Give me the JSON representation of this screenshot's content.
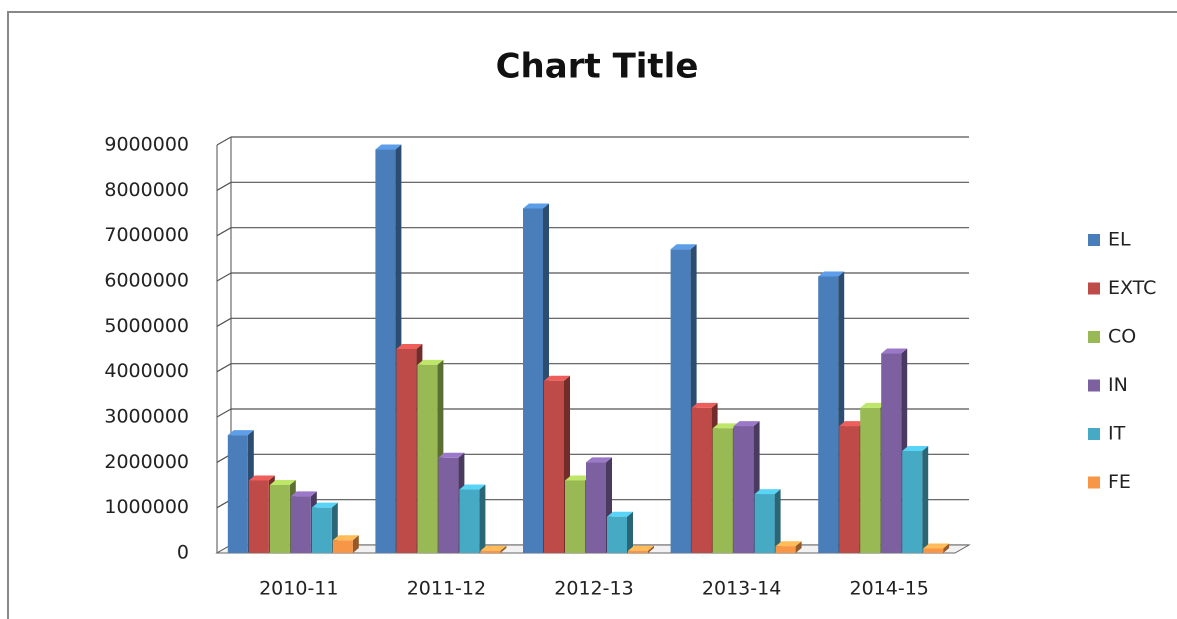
{
  "chart_data": {
    "type": "bar",
    "title": "Chart Title",
    "categories": [
      "2010-11",
      "2011-12",
      "2012-13",
      "2013-14",
      "2014-15"
    ],
    "series": [
      {
        "name": "EL",
        "color": "#4a7ebb",
        "values": [
          2600000,
          8900000,
          7600000,
          6700000,
          6100000
        ]
      },
      {
        "name": "EXTC",
        "color": "#be4b48",
        "values": [
          1600000,
          4500000,
          3800000,
          3200000,
          2800000
        ]
      },
      {
        "name": "CO",
        "color": "#98b954",
        "values": [
          1500000,
          4150000,
          1600000,
          2750000,
          3200000
        ]
      },
      {
        "name": "IN",
        "color": "#7d60a0",
        "values": [
          1250000,
          2100000,
          2000000,
          2800000,
          4400000
        ]
      },
      {
        "name": "IT",
        "color": "#46aac5",
        "values": [
          1000000,
          1400000,
          800000,
          1300000,
          2250000
        ]
      },
      {
        "name": "FE",
        "color": "#f79646",
        "values": [
          280000,
          50000,
          50000,
          150000,
          100000
        ]
      }
    ],
    "ylim": [
      0,
      9000000
    ],
    "yticks": [
      0,
      1000000,
      2000000,
      3000000,
      4000000,
      5000000,
      6000000,
      7000000,
      8000000,
      9000000
    ],
    "grid": true,
    "legend": "right"
  }
}
